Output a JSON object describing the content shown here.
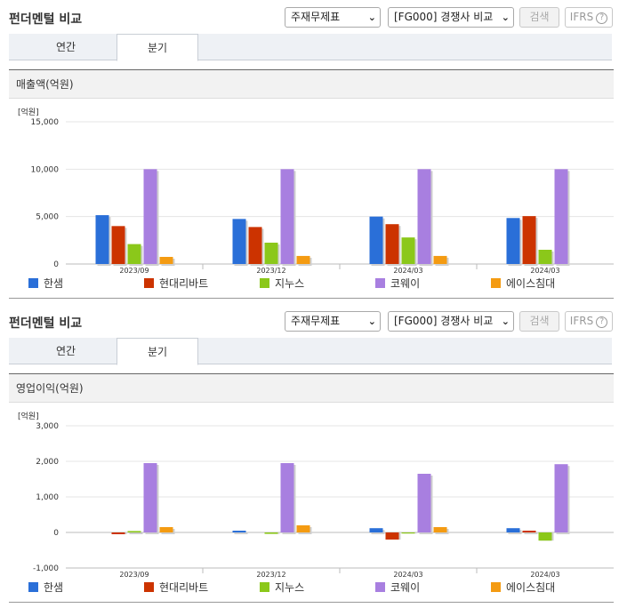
{
  "colors": {
    "hansem": "#2a6fd8",
    "hyundai_livart": "#cc3300",
    "jinus": "#8bc81a",
    "coway": "#a87fe0",
    "ace_bed": "#f49b12",
    "shadow": "#cfcfcf"
  },
  "icons": {
    "dropdown": "chevron-down-icon",
    "help": "question-circle-icon"
  },
  "panels": [
    {
      "title": "펀더멘털 비교",
      "statement_select": "주재무제표",
      "peer_select": "[FG000] 경쟁사 비교",
      "search_label": "검색",
      "ifrs_label": "IFRS",
      "help_glyph": "?",
      "tabs": [
        {
          "label": "연간",
          "active": false
        },
        {
          "label": "분기",
          "active": true
        }
      ],
      "section_title": "매출액(억원)",
      "unit_label": "[억원]"
    },
    {
      "title": "펀더멘털 비교",
      "statement_select": "주재무제표",
      "peer_select": "[FG000] 경쟁사 비교",
      "search_label": "검색",
      "ifrs_label": "IFRS",
      "help_glyph": "?",
      "tabs": [
        {
          "label": "연간",
          "active": false
        },
        {
          "label": "분기",
          "active": true
        }
      ],
      "section_title": "영업이익(억원)",
      "unit_label": "[억원]"
    }
  ],
  "chart_data": [
    {
      "type": "bar",
      "title": "매출액(억원)",
      "ylabel": "[억원]",
      "categories": [
        "2023/09",
        "2023/12",
        "2024/03",
        "2024/03"
      ],
      "ylim": [
        0,
        15000
      ],
      "yticks": [
        0,
        5000,
        10000,
        15000
      ],
      "ytick_labels": [
        "0",
        "5,000",
        "10,000",
        "15,000"
      ],
      "grid": true,
      "legend_position": "bottom",
      "series": [
        {
          "name": "한샘",
          "values": [
            5150,
            4750,
            5000,
            4850
          ]
        },
        {
          "name": "현대리바트",
          "values": [
            4000,
            3900,
            4200,
            5050
          ]
        },
        {
          "name": "지누스",
          "values": [
            2100,
            2250,
            2800,
            1500
          ]
        },
        {
          "name": "코웨이",
          "values": [
            10000,
            10000,
            10000,
            10000
          ]
        },
        {
          "name": "에이스침대",
          "values": [
            750,
            850,
            850,
            0
          ]
        }
      ]
    },
    {
      "type": "bar",
      "title": "영업이익(억원)",
      "ylabel": "[억원]",
      "categories": [
        "2023/09",
        "2023/12",
        "2024/03",
        "2024/03"
      ],
      "ylim": [
        -1000,
        3000
      ],
      "yticks": [
        -1000,
        0,
        1000,
        2000,
        3000
      ],
      "ytick_labels": [
        "-1,000",
        "0",
        "1,000",
        "2,000",
        "3,000"
      ],
      "grid": true,
      "legend_position": "bottom",
      "series": [
        {
          "name": "한샘",
          "values": [
            0,
            50,
            120,
            120
          ]
        },
        {
          "name": "현대리바트",
          "values": [
            -50,
            0,
            -200,
            50
          ]
        },
        {
          "name": "지누스",
          "values": [
            40,
            -40,
            -30,
            -230
          ]
        },
        {
          "name": "코웨이",
          "values": [
            1950,
            1950,
            1650,
            1920
          ]
        },
        {
          "name": "에이스침대",
          "values": [
            150,
            200,
            150,
            0
          ]
        }
      ]
    }
  ]
}
